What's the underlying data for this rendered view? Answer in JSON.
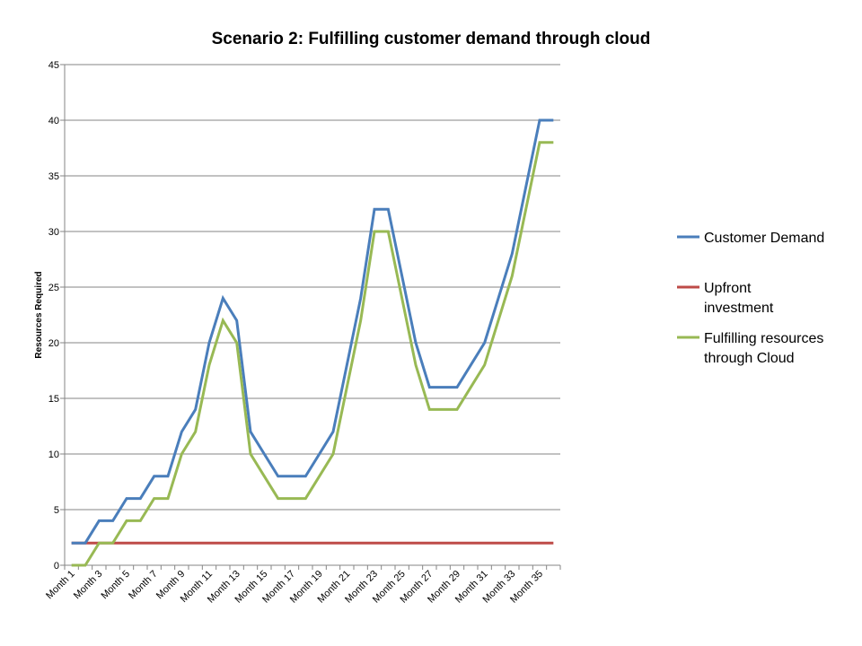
{
  "chart_data": {
    "type": "line",
    "title": "Scenario 2: Fulfilling customer demand through cloud",
    "xlabel": "",
    "ylabel": "Resources Required",
    "ylim": [
      0,
      45
    ],
    "yticks": [
      0,
      5,
      10,
      15,
      20,
      25,
      30,
      35,
      40,
      45
    ],
    "grid": "horizontal",
    "legend_position": "right",
    "categories": [
      "Month 1",
      "Month 2",
      "Month 3",
      "Month 4",
      "Month 5",
      "Month 6",
      "Month 7",
      "Month 8",
      "Month 9",
      "Month 10",
      "Month 11",
      "Month 12",
      "Month 13",
      "Month 14",
      "Month 15",
      "Month 16",
      "Month 17",
      "Month 18",
      "Month 19",
      "Month 20",
      "Month 21",
      "Month 22",
      "Month 23",
      "Month 24",
      "Month 25",
      "Month 26",
      "Month 27",
      "Month 28",
      "Month 29",
      "Month 30",
      "Month 31",
      "Month 32",
      "Month 33",
      "Month 34",
      "Month 35",
      "Month 36"
    ],
    "x_tick_labels": [
      "Month 1",
      "Month 3",
      "Month 5",
      "Month 7",
      "Month 9",
      "Month 11",
      "Month 13",
      "Month 15",
      "Month 17",
      "Month 19",
      "Month 21",
      "Month 23",
      "Month 25",
      "Month 27",
      "Month 29",
      "Month 31",
      "Month 33",
      "Month 35"
    ],
    "series": [
      {
        "name": "Customer Demand",
        "color": "#4A7EBB",
        "values": [
          2,
          2,
          4,
          4,
          6,
          6,
          8,
          8,
          12,
          14,
          20,
          24,
          22,
          12,
          10,
          8,
          8,
          8,
          10,
          12,
          18,
          24,
          32,
          32,
          26,
          20,
          16,
          16,
          16,
          18,
          20,
          24,
          28,
          34,
          40,
          40
        ]
      },
      {
        "name": "Upfront investment",
        "color": "#BE4B48",
        "values": [
          2,
          2,
          2,
          2,
          2,
          2,
          2,
          2,
          2,
          2,
          2,
          2,
          2,
          2,
          2,
          2,
          2,
          2,
          2,
          2,
          2,
          2,
          2,
          2,
          2,
          2,
          2,
          2,
          2,
          2,
          2,
          2,
          2,
          2,
          2,
          2
        ]
      },
      {
        "name": "Fulfilling resources through Cloud",
        "color": "#98B954",
        "values": [
          0,
          0,
          2,
          2,
          4,
          4,
          6,
          6,
          10,
          12,
          18,
          22,
          20,
          10,
          8,
          6,
          6,
          6,
          8,
          10,
          16,
          22,
          30,
          30,
          24,
          18,
          14,
          14,
          14,
          16,
          18,
          22,
          26,
          32,
          38,
          38
        ]
      }
    ],
    "legend": [
      {
        "lines": [
          "Customer Demand"
        ],
        "color": "#4A7EBB"
      },
      {
        "lines": [
          "Upfront",
          "investment"
        ],
        "color": "#BE4B48"
      },
      {
        "lines": [
          "Fulfilling resources",
          "through Cloud"
        ],
        "color": "#98B954"
      }
    ]
  }
}
